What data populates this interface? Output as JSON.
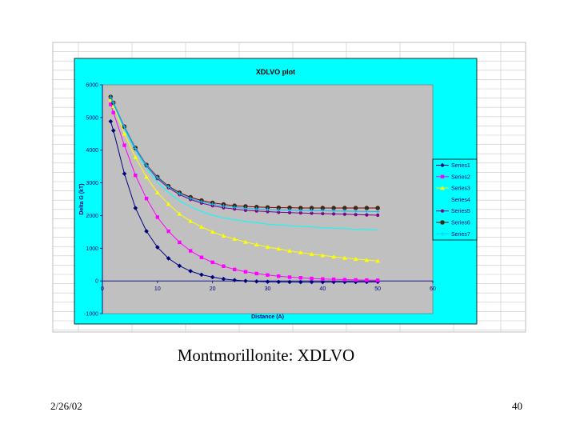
{
  "slide": {
    "caption": "Montmorillonite: XDLVO",
    "date": "2/26/02",
    "page_number": "40"
  },
  "colors": {
    "chart_area": "#00ffff",
    "plot_area": "#c0c0c0",
    "gridline": "#c8c8c8"
  },
  "chart_data": {
    "type": "line",
    "title": "XDLVO plot",
    "xlabel": "Distance (A)",
    "ylabel": "Delta G (kT)",
    "xlim": [
      0,
      60
    ],
    "ylim": [
      -1000,
      6000
    ],
    "xticks": [
      0,
      10,
      20,
      30,
      40,
      50,
      60
    ],
    "yticks": [
      -1000,
      0,
      1000,
      2000,
      3000,
      4000,
      5000,
      6000
    ],
    "grid": false,
    "legend_position": "right",
    "x": [
      1.5,
      2,
      4,
      6,
      8,
      10,
      12,
      14,
      16,
      18,
      20,
      22,
      24,
      26,
      28,
      30,
      32,
      34,
      36,
      38,
      40,
      42,
      44,
      46,
      48,
      50
    ],
    "series": [
      {
        "name": "Series1",
        "color": "#000080",
        "marker": "diamond",
        "values": [
          4880,
          4600,
          3280,
          2230,
          1520,
          1030,
          690,
          460,
          300,
          190,
          115,
          60,
          25,
          0,
          -15,
          -25,
          -30,
          -33,
          -35,
          -35,
          -35,
          -34,
          -33,
          -32,
          -31,
          -30
        ]
      },
      {
        "name": "Series2",
        "color": "#ff00ff",
        "marker": "square",
        "values": [
          5400,
          5150,
          4150,
          3230,
          2520,
          1950,
          1520,
          1180,
          920,
          720,
          570,
          450,
          350,
          280,
          225,
          180,
          145,
          115,
          95,
          75,
          60,
          50,
          40,
          30,
          25,
          20
        ]
      },
      {
        "name": "Series3",
        "color": "#ffff00",
        "marker": "triangle",
        "values": [
          5550,
          5350,
          4500,
          3780,
          3180,
          2700,
          2350,
          2050,
          1830,
          1650,
          1500,
          1380,
          1280,
          1190,
          1110,
          1040,
          980,
          920,
          870,
          820,
          780,
          740,
          700,
          670,
          640,
          610
        ]
      },
      {
        "name": "Series4",
        "color": "#00ffff",
        "marker": "none",
        "values": [
          5600,
          5400,
          4650,
          3980,
          3450,
          3020,
          2700,
          2450,
          2270,
          2120,
          2010,
          1930,
          1870,
          1820,
          1780,
          1740,
          1710,
          1690,
          1670,
          1650,
          1630,
          1610,
          1600,
          1580,
          1570,
          1550
        ]
      },
      {
        "name": "Series5",
        "color": "#800080",
        "marker": "circle",
        "values": [
          5620,
          5440,
          4700,
          4040,
          3520,
          3130,
          2850,
          2640,
          2490,
          2380,
          2300,
          2240,
          2200,
          2160,
          2140,
          2120,
          2100,
          2090,
          2080,
          2070,
          2060,
          2050,
          2040,
          2030,
          2020,
          2010
        ]
      },
      {
        "name": "Series6",
        "color": "#800000",
        "marker": "circle-dark",
        "values": [
          5630,
          5450,
          4720,
          4070,
          3550,
          3180,
          2900,
          2700,
          2560,
          2460,
          2390,
          2340,
          2300,
          2280,
          2260,
          2250,
          2240,
          2240,
          2230,
          2230,
          2230,
          2230,
          2230,
          2230,
          2230,
          2230
        ]
      },
      {
        "name": "Series7",
        "color": "#00c0ff",
        "marker": "plus",
        "values": [
          5625,
          5445,
          4710,
          4055,
          3535,
          3155,
          2875,
          2670,
          2525,
          2420,
          2345,
          2290,
          2250,
          2220,
          2200,
          2185,
          2170,
          2165,
          2155,
          2150,
          2145,
          2140,
          2135,
          2130,
          2125,
          2120
        ]
      }
    ]
  }
}
